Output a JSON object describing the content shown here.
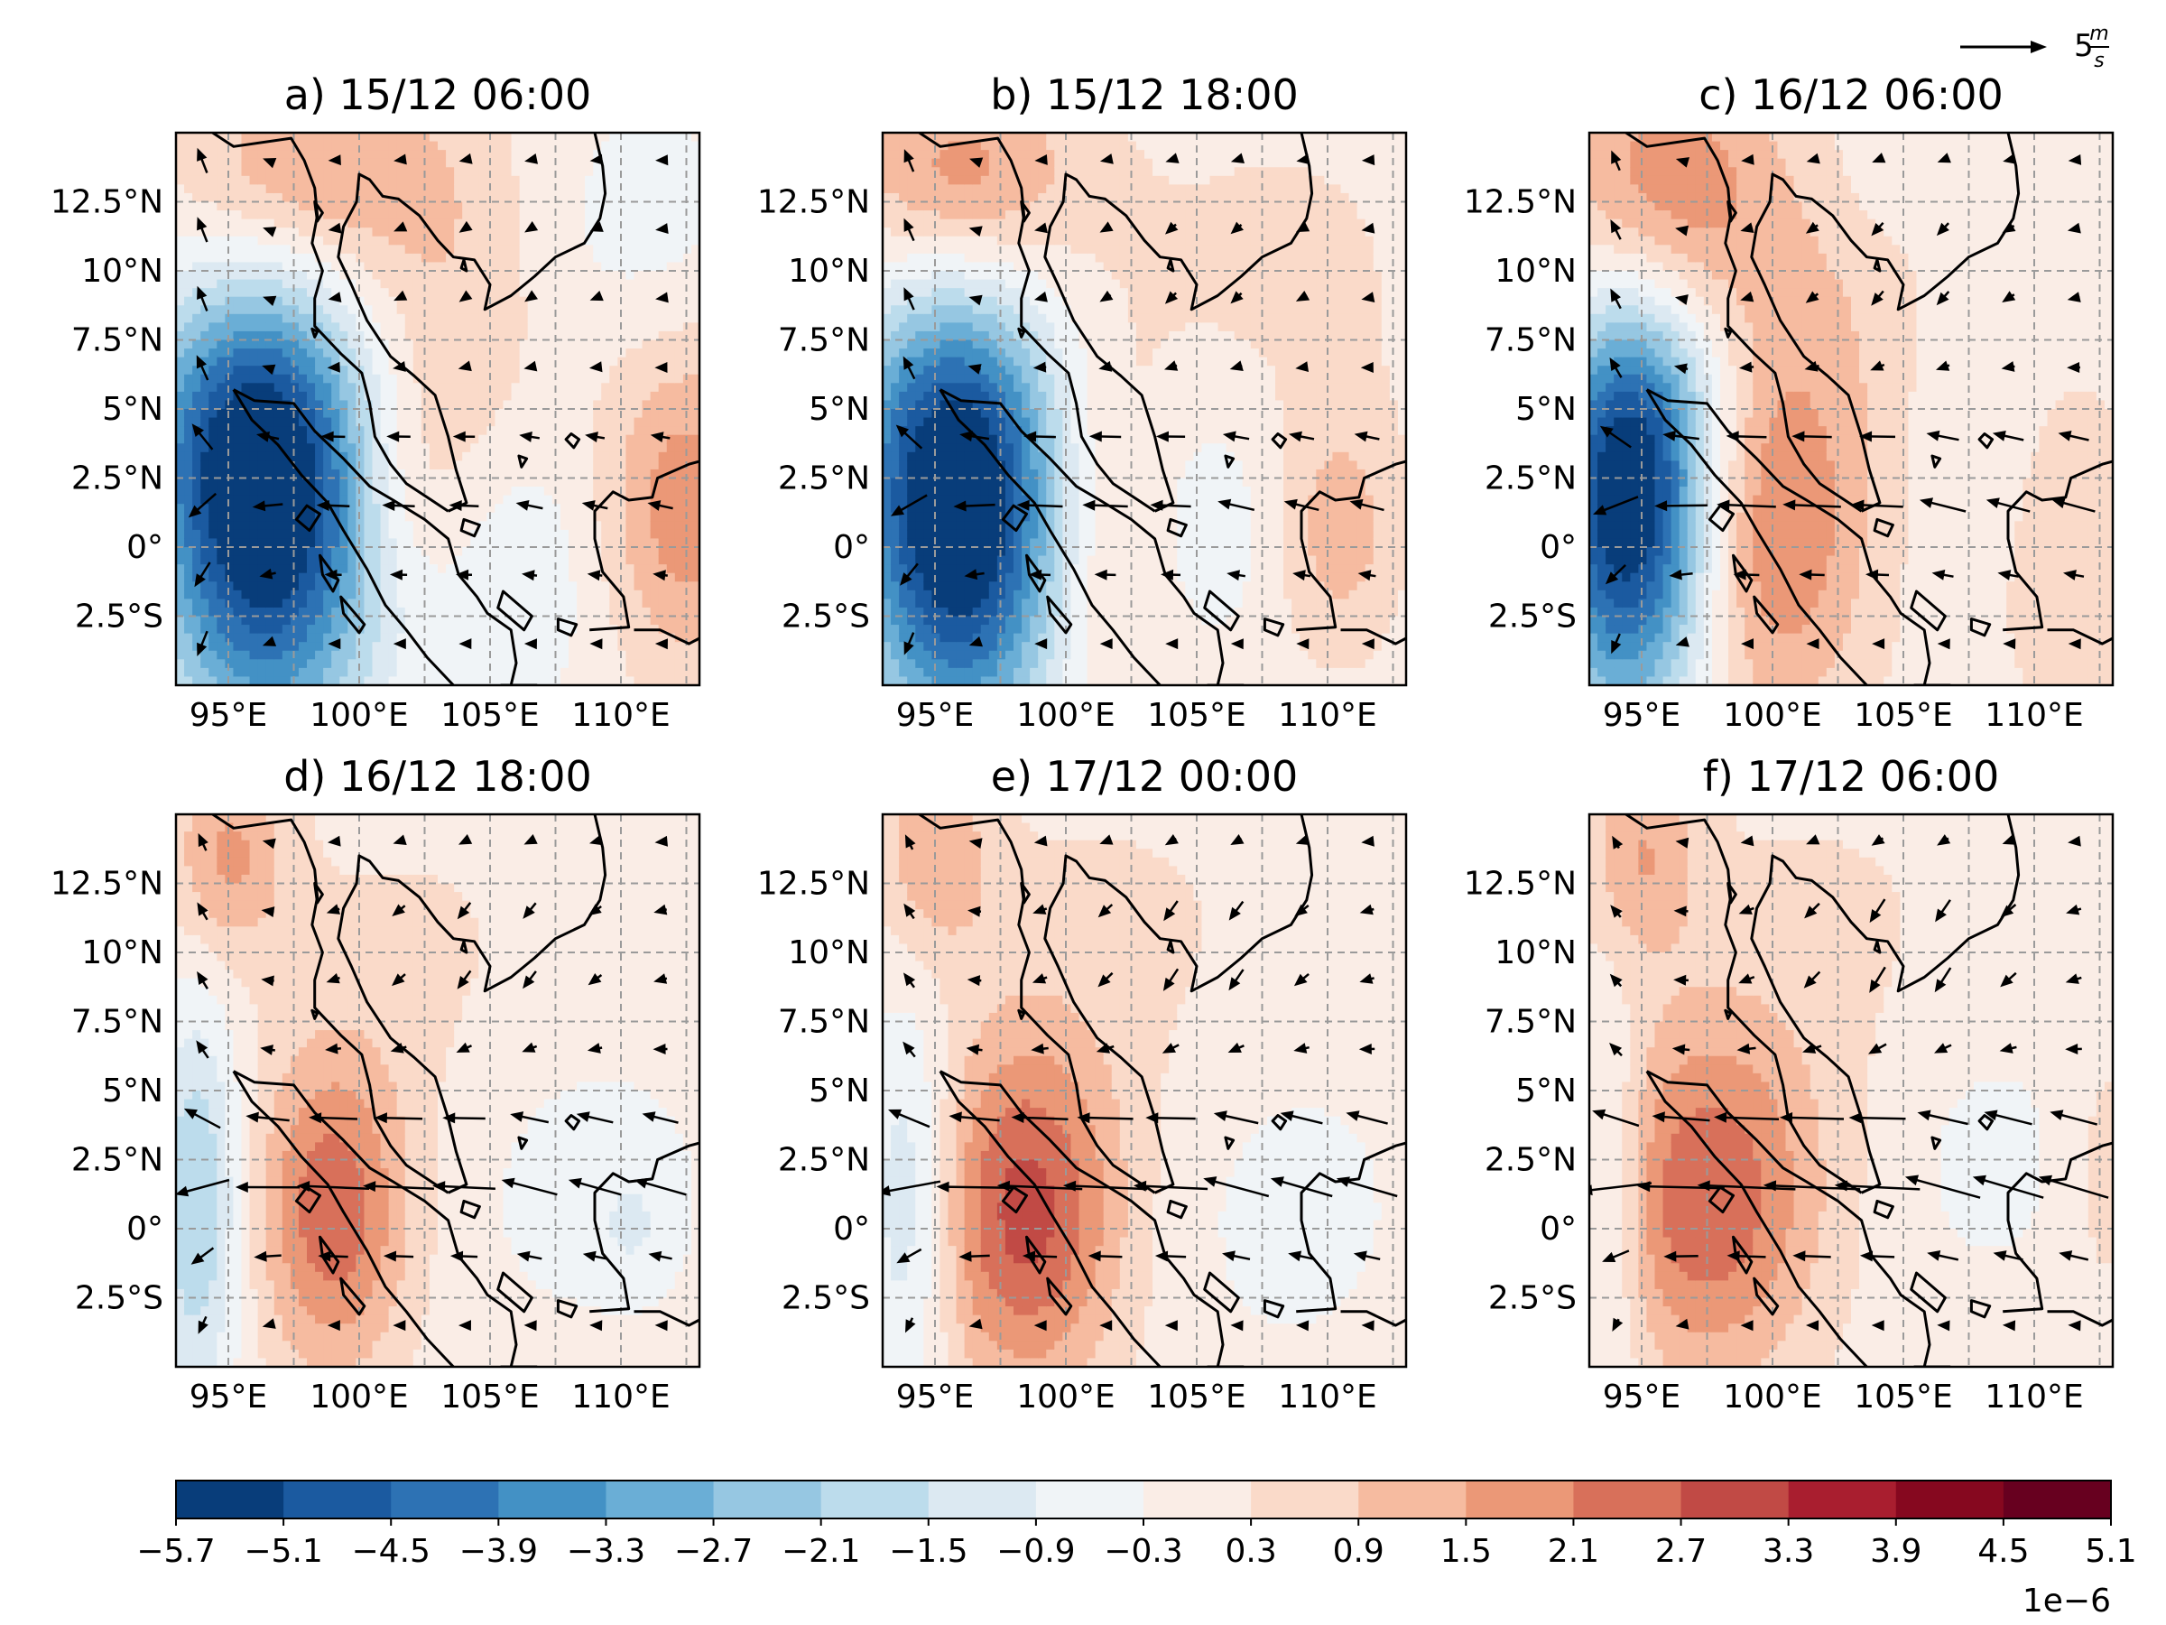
{
  "panels": [
    {
      "id": "a",
      "title": "a) 15/12 06:00",
      "field": [
        {
          "x": 96.5,
          "y": 0.5,
          "sx": 3.0,
          "sy": 5.5,
          "amp": -5.4
        },
        {
          "x": 95.5,
          "y": 4.5,
          "sx": 3.0,
          "sy": 3.5,
          "amp": -2.0
        },
        {
          "x": 98,
          "y": 13.5,
          "sx": 3.5,
          "sy": 2.5,
          "amp": 1.6
        },
        {
          "x": 103,
          "y": 7,
          "sx": 2.5,
          "sy": 6,
          "amp": 0.9
        },
        {
          "x": 101.5,
          "y": 2,
          "sx": 1.5,
          "sy": 2.5,
          "amp": 0.6
        },
        {
          "x": 112.5,
          "y": 1.5,
          "sx": 2.2,
          "sy": 4.0,
          "amp": 1.9
        },
        {
          "x": 106,
          "y": -1,
          "sx": 2.2,
          "sy": 3.5,
          "amp": -0.9
        },
        {
          "x": 111,
          "y": 12,
          "sx": 2.5,
          "sy": 3.0,
          "amp": -0.6
        }
      ]
    },
    {
      "id": "b",
      "title": "b) 15/12 18:00",
      "field": [
        {
          "x": 96.0,
          "y": 0.0,
          "sx": 2.8,
          "sy": 5.0,
          "amp": -5.6
        },
        {
          "x": 95.5,
          "y": 5,
          "sx": 3.0,
          "sy": 3.5,
          "amp": -2.0
        },
        {
          "x": 96,
          "y": 13.5,
          "sx": 3.0,
          "sy": 2.5,
          "amp": 1.8
        },
        {
          "x": 101,
          "y": 1,
          "sx": 2.0,
          "sy": 5.0,
          "amp": 1.0
        },
        {
          "x": 105.5,
          "y": 1,
          "sx": 1.5,
          "sy": 3.0,
          "amp": -0.8
        },
        {
          "x": 110.5,
          "y": 0.5,
          "sx": 1.5,
          "sy": 3.0,
          "amp": 1.2
        },
        {
          "x": 108,
          "y": 10,
          "sx": 5.0,
          "sy": 5.0,
          "amp": 0.4
        }
      ]
    },
    {
      "id": "c",
      "title": "c) 16/12 06:00",
      "field": [
        {
          "x": 94.5,
          "y": 0.5,
          "sx": 2.2,
          "sy": 5.0,
          "amp": -5.2
        },
        {
          "x": 95,
          "y": 5,
          "sx": 2.2,
          "sy": 3.5,
          "amp": -1.8
        },
        {
          "x": 100,
          "y": 0.5,
          "sx": 2.5,
          "sy": 5.0,
          "amp": 2.1
        },
        {
          "x": 96,
          "y": 13.0,
          "sx": 3.0,
          "sy": 3.5,
          "amp": 2.0
        },
        {
          "x": 103,
          "y": 9,
          "sx": 3.0,
          "sy": 5.0,
          "amp": 0.6
        },
        {
          "x": 107,
          "y": 4,
          "sx": 2.0,
          "sy": 5.0,
          "amp": -0.4
        },
        {
          "x": 111,
          "y": 0,
          "sx": 3.5,
          "sy": 6.0,
          "amp": 0.5
        },
        {
          "x": 104.5,
          "y": 13.5,
          "sx": 2.0,
          "sy": 2.0,
          "amp": -0.4
        }
      ]
    },
    {
      "id": "d",
      "title": "d) 16/12 18:00",
      "field": [
        {
          "x": 93.8,
          "y": 1.0,
          "sx": 1.2,
          "sy": 5.0,
          "amp": -2.2
        },
        {
          "x": 99,
          "y": 0.5,
          "sx": 2.0,
          "sy": 4.0,
          "amp": 2.5
        },
        {
          "x": 95,
          "y": 13.5,
          "sx": 1.5,
          "sy": 2.5,
          "amp": 1.6
        },
        {
          "x": 102,
          "y": 9,
          "sx": 5.0,
          "sy": 5.0,
          "amp": 0.4
        },
        {
          "x": 108.5,
          "y": 2,
          "sx": 3.5,
          "sy": 4.0,
          "amp": -0.6
        },
        {
          "x": 110.5,
          "y": 0,
          "sx": 1.0,
          "sy": 1.5,
          "amp": -0.6
        }
      ]
    },
    {
      "id": "e",
      "title": "e) 17/12 00:00",
      "field": [
        {
          "x": 94.0,
          "y": 1.0,
          "sx": 1.2,
          "sy": 5.0,
          "amp": -1.6
        },
        {
          "x": 98.5,
          "y": 0.5,
          "sx": 2.5,
          "sy": 4.5,
          "amp": 2.9
        },
        {
          "x": 95,
          "y": 13.5,
          "sx": 1.5,
          "sy": 2.5,
          "amp": 1.4
        },
        {
          "x": 102,
          "y": 10,
          "sx": 5.0,
          "sy": 5.0,
          "amp": 0.4
        },
        {
          "x": 108.5,
          "y": 1,
          "sx": 3.5,
          "sy": 4.5,
          "amp": -0.5
        }
      ]
    },
    {
      "id": "f",
      "title": "f) 17/12 06:00",
      "field": [
        {
          "x": 93.8,
          "y": 1.0,
          "sx": 1.0,
          "sy": 5.0,
          "amp": -1.3
        },
        {
          "x": 97.5,
          "y": 1.0,
          "sx": 3.0,
          "sy": 4.5,
          "amp": 2.6
        },
        {
          "x": 95,
          "y": 13.5,
          "sx": 1.5,
          "sy": 2.5,
          "amp": 1.4
        },
        {
          "x": 102,
          "y": 10,
          "sx": 5.0,
          "sy": 5.0,
          "amp": 0.4
        },
        {
          "x": 108,
          "y": 3,
          "sx": 3.0,
          "sy": 4.0,
          "amp": -0.5
        },
        {
          "x": 112.8,
          "y": 2,
          "sx": 1.0,
          "sy": 3.0,
          "amp": 0.7
        }
      ]
    }
  ],
  "map_extent": {
    "lon": [
      93,
      113
    ],
    "lat": [
      -5,
      15
    ]
  },
  "x_ticks": [
    {
      "value": 95,
      "label": "95°E"
    },
    {
      "value": 100,
      "label": "100°E"
    },
    {
      "value": 105,
      "label": "105°E"
    },
    {
      "value": 110,
      "label": "110°E"
    }
  ],
  "y_ticks": [
    {
      "value": 12.5,
      "label": "12.5°N"
    },
    {
      "value": 10,
      "label": "10°N"
    },
    {
      "value": 7.5,
      "label": "7.5°N"
    },
    {
      "value": 5,
      "label": "5°N"
    },
    {
      "value": 2.5,
      "label": "2.5°N"
    },
    {
      "value": 0,
      "label": "0°"
    },
    {
      "value": -2.5,
      "label": "2.5°S"
    }
  ],
  "grid": true,
  "vector_key": {
    "value": "5",
    "units_num": "m",
    "units_den": "s"
  },
  "colorbar": {
    "levels": [
      -5.7,
      -5.1,
      -4.5,
      -3.9,
      -3.3,
      -2.7,
      -2.1,
      -1.5,
      -0.9,
      -0.3,
      0.3,
      0.9,
      1.5,
      2.1,
      2.7,
      3.3,
      3.9,
      4.5,
      5.1
    ],
    "tick_labels": [
      "−5.7",
      "−5.1",
      "−4.5",
      "−3.9",
      "−3.3",
      "−2.7",
      "−2.1",
      "−1.5",
      "−0.9",
      "−0.3",
      "0.3",
      "0.9",
      "1.5",
      "2.1",
      "2.7",
      "3.3",
      "3.9",
      "4.5",
      "5.1"
    ],
    "colors": [
      "#083d7a",
      "#1b5aa0",
      "#2d72b4",
      "#4391c5",
      "#6aaed6",
      "#96c7e2",
      "#bcdcec",
      "#dce9f2",
      "#f0f4f7",
      "#faede6",
      "#fadac9",
      "#f6bba0",
      "#eb9877",
      "#d8705a",
      "#c14a45",
      "#a91e2f",
      "#86081f",
      "#67001f"
    ],
    "scale_label": "1e−6"
  },
  "colors": {
    "coast": "#000000",
    "grid": "#9a9a9a",
    "arrow": "#000000"
  }
}
